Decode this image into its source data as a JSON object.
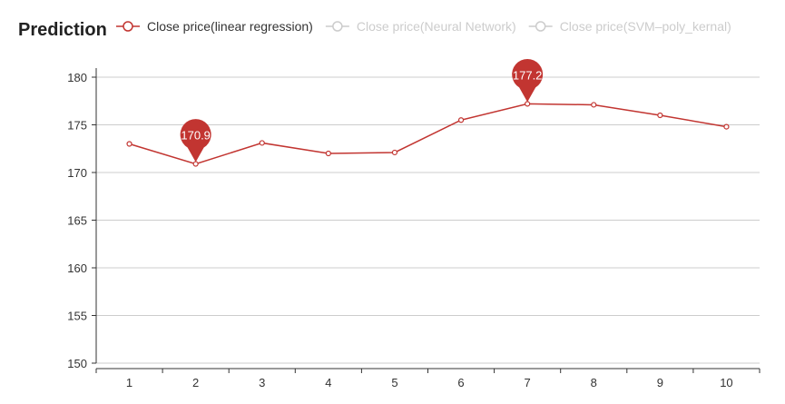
{
  "chart_data": {
    "type": "line",
    "title": "Prediction",
    "x": [
      1,
      2,
      3,
      4,
      5,
      6,
      7,
      8,
      9,
      10
    ],
    "ylim": [
      150,
      180
    ],
    "y_ticks": [
      150,
      155,
      160,
      165,
      170,
      175,
      180
    ],
    "grid": true,
    "legend_position": "top",
    "legend": [
      {
        "label": "Close price(linear regression)",
        "active": true,
        "color": "#c23531"
      },
      {
        "label": "Close price(Neural Network)",
        "active": false,
        "color": "#cccccc"
      },
      {
        "label": "Close price(SVM–poly_kernal)",
        "active": false,
        "color": "#cccccc"
      }
    ],
    "series": [
      {
        "name": "Close price(linear regression)",
        "color": "#c23531",
        "values": [
          173.0,
          170.9,
          173.1,
          172.0,
          172.1,
          175.5,
          177.2,
          177.1,
          176.0,
          174.8
        ]
      }
    ],
    "markers": [
      {
        "x": 2,
        "value": 170.9,
        "label": "170.9"
      },
      {
        "x": 7,
        "value": 177.2,
        "label": "177.2"
      }
    ]
  }
}
